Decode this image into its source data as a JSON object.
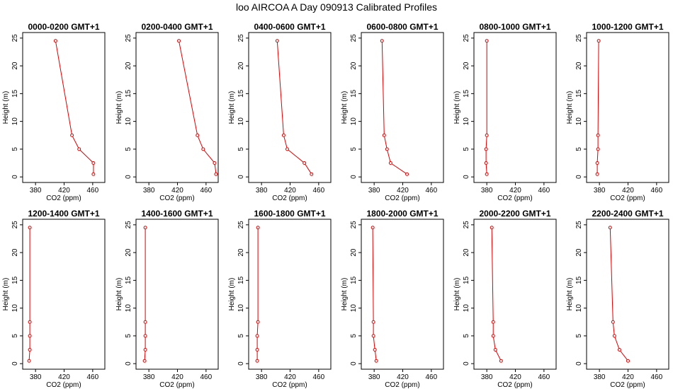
{
  "figure": {
    "title": "loo AIRCOA A  Day 090913  Calibrated Profiles"
  },
  "colors": {
    "series": "#dd0000",
    "axis": "#000000",
    "background": "#ffffff"
  },
  "chart_data": [
    {
      "type": "line",
      "title": "0000-0200 GMT+1",
      "xlabel": "CO2 (ppm)",
      "ylabel": "Height (m)",
      "xlim": [
        362,
        477
      ],
      "ylim": [
        -1,
        26
      ],
      "xticks": [
        380,
        420,
        460
      ],
      "yticks": [
        0,
        5,
        10,
        15,
        20,
        25
      ],
      "grid": false,
      "series": [
        {
          "x": [
            461,
            461,
            441,
            431,
            408
          ],
          "y": [
            0.5,
            2.5,
            5,
            7.5,
            24.5
          ]
        }
      ]
    },
    {
      "type": "line",
      "title": "0200-0400 GMT+1",
      "xlabel": "CO2 (ppm)",
      "ylabel": "Height (m)",
      "xlim": [
        362,
        477
      ],
      "ylim": [
        -1,
        26
      ],
      "xticks": [
        380,
        420,
        460
      ],
      "yticks": [
        0,
        5,
        10,
        15,
        20,
        25
      ],
      "grid": false,
      "series": [
        {
          "x": [
            474,
            472,
            456,
            448,
            422
          ],
          "y": [
            0.5,
            2.5,
            5,
            7.5,
            24.5
          ]
        }
      ]
    },
    {
      "type": "line",
      "title": "0400-0600 GMT+1",
      "xlabel": "CO2 (ppm)",
      "ylabel": "Height (m)",
      "xlim": [
        362,
        477
      ],
      "ylim": [
        -1,
        26
      ],
      "xticks": [
        380,
        420,
        460
      ],
      "yticks": [
        0,
        5,
        10,
        15,
        20,
        25
      ],
      "grid": false,
      "series": [
        {
          "x": [
            450,
            440,
            416,
            411,
            402
          ],
          "y": [
            0.5,
            2.5,
            5,
            7.5,
            24.5
          ]
        }
      ]
    },
    {
      "type": "line",
      "title": "0600-0800 GMT+1",
      "xlabel": "CO2 (ppm)",
      "ylabel": "Height (m)",
      "xlim": [
        362,
        477
      ],
      "ylim": [
        -1,
        26
      ],
      "xticks": [
        380,
        420,
        460
      ],
      "yticks": [
        0,
        5,
        10,
        15,
        20,
        25
      ],
      "grid": false,
      "series": [
        {
          "x": [
            426,
            403,
            398,
            394,
            391
          ],
          "y": [
            0.5,
            2.5,
            5,
            7.5,
            24.5
          ]
        }
      ]
    },
    {
      "type": "line",
      "title": "0800-1000 GMT+1",
      "xlabel": "CO2 (ppm)",
      "ylabel": "Height (m)",
      "xlim": [
        362,
        477
      ],
      "ylim": [
        -1,
        26
      ],
      "xticks": [
        380,
        420,
        460
      ],
      "yticks": [
        0,
        5,
        10,
        15,
        20,
        25
      ],
      "grid": false,
      "series": [
        {
          "x": [
            380,
            379,
            379,
            380,
            380
          ],
          "y": [
            0.5,
            2.5,
            5,
            7.5,
            24.5
          ]
        }
      ]
    },
    {
      "type": "line",
      "title": "1000-1200 GMT+1",
      "xlabel": "CO2 (ppm)",
      "ylabel": "Height (m)",
      "xlim": [
        362,
        477
      ],
      "ylim": [
        -1,
        26
      ],
      "xticks": [
        380,
        420,
        460
      ],
      "yticks": [
        0,
        5,
        10,
        15,
        20,
        25
      ],
      "grid": false,
      "series": [
        {
          "x": [
            377,
            377,
            378,
            378,
            379
          ],
          "y": [
            0.5,
            2.5,
            5,
            7.5,
            24.5
          ]
        }
      ]
    },
    {
      "type": "line",
      "title": "1200-1400 GMT+1",
      "xlabel": "CO2 (ppm)",
      "ylabel": "Height (m)",
      "xlim": [
        362,
        477
      ],
      "ylim": [
        -1,
        26
      ],
      "xticks": [
        380,
        420,
        460
      ],
      "yticks": [
        0,
        5,
        10,
        15,
        20,
        25
      ],
      "grid": false,
      "series": [
        {
          "x": [
            371,
            372,
            372,
            372,
            372
          ],
          "y": [
            0.5,
            2.5,
            5,
            7.5,
            24.5
          ]
        }
      ]
    },
    {
      "type": "line",
      "title": "1400-1600 GMT+1",
      "xlabel": "CO2 (ppm)",
      "ylabel": "Height (m)",
      "xlim": [
        362,
        477
      ],
      "ylim": [
        -1,
        26
      ],
      "xticks": [
        380,
        420,
        460
      ],
      "yticks": [
        0,
        5,
        10,
        15,
        20,
        25
      ],
      "grid": false,
      "series": [
        {
          "x": [
            374,
            375,
            375,
            375,
            375
          ],
          "y": [
            0.5,
            2.5,
            5,
            7.5,
            24.5
          ]
        }
      ]
    },
    {
      "type": "line",
      "title": "1600-1800 GMT+1",
      "xlabel": "CO2 (ppm)",
      "ylabel": "Height (m)",
      "xlim": [
        362,
        477
      ],
      "ylim": [
        -1,
        26
      ],
      "xticks": [
        380,
        420,
        460
      ],
      "yticks": [
        0,
        5,
        10,
        15,
        20,
        25
      ],
      "grid": false,
      "series": [
        {
          "x": [
            374,
            374,
            374,
            375,
            375
          ],
          "y": [
            0.5,
            2.5,
            5,
            7.5,
            24.5
          ]
        }
      ]
    },
    {
      "type": "line",
      "title": "1800-2000 GMT+1",
      "xlabel": "CO2 (ppm)",
      "ylabel": "Height (m)",
      "xlim": [
        362,
        477
      ],
      "ylim": [
        -1,
        26
      ],
      "xticks": [
        380,
        420,
        460
      ],
      "yticks": [
        0,
        5,
        10,
        15,
        20,
        25
      ],
      "grid": false,
      "series": [
        {
          "x": [
            383,
            381,
            379,
            379,
            378
          ],
          "y": [
            0.5,
            2.5,
            5,
            7.5,
            24.5
          ]
        }
      ]
    },
    {
      "type": "line",
      "title": "2000-2200 GMT+1",
      "xlabel": "CO2 (ppm)",
      "ylabel": "Height (m)",
      "xlim": [
        362,
        477
      ],
      "ylim": [
        -1,
        26
      ],
      "xticks": [
        380,
        420,
        460
      ],
      "yticks": [
        0,
        5,
        10,
        15,
        20,
        25
      ],
      "grid": false,
      "series": [
        {
          "x": [
            400,
            392,
            389,
            389,
            387
          ],
          "y": [
            0.5,
            2.5,
            5,
            7.5,
            24.5
          ]
        }
      ]
    },
    {
      "type": "line",
      "title": "2200-2400 GMT+1",
      "xlabel": "CO2 (ppm)",
      "ylabel": "Height (m)",
      "xlim": [
        362,
        477
      ],
      "ylim": [
        -1,
        26
      ],
      "xticks": [
        380,
        420,
        460
      ],
      "yticks": [
        0,
        5,
        10,
        15,
        20,
        25
      ],
      "grid": false,
      "series": [
        {
          "x": [
            420,
            408,
            401,
            399,
            395
          ],
          "y": [
            0.5,
            2.5,
            5,
            7.5,
            24.5
          ]
        }
      ]
    }
  ]
}
